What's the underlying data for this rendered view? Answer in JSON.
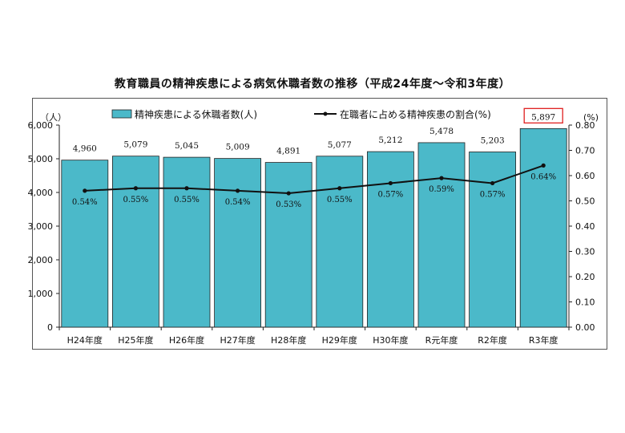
{
  "title": "教育職員の精神疾患による病気休職者数の推移（平成24年度〜令和3年度）",
  "left_unit": "（人）",
  "right_unit": "(%)",
  "colors": {
    "bar": "#4bb9c9",
    "bar_stroke": "#222222",
    "line": "#111111",
    "highlight": "#e02020"
  },
  "chart_data": {
    "type": "bar",
    "categories": [
      "H24年度",
      "H25年度",
      "H26年度",
      "H27年度",
      "H28年度",
      "H29年度",
      "H30年度",
      "R元年度",
      "R2年度",
      "R3年度"
    ],
    "series": [
      {
        "name": "精神疾患による休職者数(人)",
        "type": "bar",
        "axis": "left",
        "values": [
          4960,
          5079,
          5045,
          5009,
          4891,
          5077,
          5212,
          5478,
          5203,
          5897
        ],
        "labels": [
          "4,960",
          "5,079",
          "5,045",
          "5,009",
          "4,891",
          "5,077",
          "5,212",
          "5,478",
          "5,203",
          "5,897"
        ]
      },
      {
        "name": "在職者に占める精神疾患の割合(%)",
        "type": "line",
        "axis": "right",
        "values": [
          0.54,
          0.55,
          0.55,
          0.54,
          0.53,
          0.55,
          0.57,
          0.59,
          0.57,
          0.64
        ],
        "labels": [
          "0.54%",
          "0.55%",
          "0.55%",
          "0.54%",
          "0.53%",
          "0.55%",
          "0.57%",
          "0.59%",
          "0.57%",
          "0.64%"
        ]
      }
    ],
    "ylim": [
      0,
      6000
    ],
    "y_ticks": [
      "0",
      "1,000",
      "2,000",
      "3,000",
      "4,000",
      "5,000",
      "6,000"
    ],
    "y2lim": [
      0,
      0.8
    ],
    "y2_ticks": [
      "0.00",
      "0.10",
      "0.20",
      "0.30",
      "0.40",
      "0.50",
      "0.60",
      "0.70",
      "0.80"
    ],
    "highlight_label": "5,897",
    "legend_position": "top",
    "grid": false
  }
}
